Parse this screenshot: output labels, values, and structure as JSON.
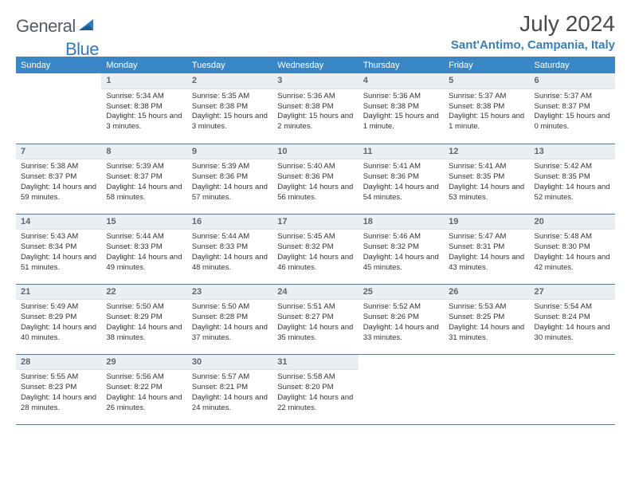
{
  "brand": {
    "word1": "General",
    "word2": "Blue"
  },
  "title": "July 2024",
  "location": "Sant'Antimo, Campania, Italy",
  "colors": {
    "header_bg": "#3a87c7",
    "header_text": "#ffffff",
    "daynum_bg": "#eceff1",
    "rule": "#5b7a95",
    "logo_gray": "#555c63",
    "logo_blue": "#2f7bbf",
    "location_color": "#3a7fb5"
  },
  "weekdays": [
    "Sunday",
    "Monday",
    "Tuesday",
    "Wednesday",
    "Thursday",
    "Friday",
    "Saturday"
  ],
  "weeks": [
    [
      {
        "n": "",
        "lines": []
      },
      {
        "n": "1",
        "lines": [
          "Sunrise: 5:34 AM",
          "Sunset: 8:38 PM",
          "Daylight: 15 hours and 3 minutes."
        ]
      },
      {
        "n": "2",
        "lines": [
          "Sunrise: 5:35 AM",
          "Sunset: 8:38 PM",
          "Daylight: 15 hours and 3 minutes."
        ]
      },
      {
        "n": "3",
        "lines": [
          "Sunrise: 5:36 AM",
          "Sunset: 8:38 PM",
          "Daylight: 15 hours and 2 minutes."
        ]
      },
      {
        "n": "4",
        "lines": [
          "Sunrise: 5:36 AM",
          "Sunset: 8:38 PM",
          "Daylight: 15 hours and 1 minute."
        ]
      },
      {
        "n": "5",
        "lines": [
          "Sunrise: 5:37 AM",
          "Sunset: 8:38 PM",
          "Daylight: 15 hours and 1 minute."
        ]
      },
      {
        "n": "6",
        "lines": [
          "Sunrise: 5:37 AM",
          "Sunset: 8:37 PM",
          "Daylight: 15 hours and 0 minutes."
        ]
      }
    ],
    [
      {
        "n": "7",
        "lines": [
          "Sunrise: 5:38 AM",
          "Sunset: 8:37 PM",
          "Daylight: 14 hours and 59 minutes."
        ]
      },
      {
        "n": "8",
        "lines": [
          "Sunrise: 5:39 AM",
          "Sunset: 8:37 PM",
          "Daylight: 14 hours and 58 minutes."
        ]
      },
      {
        "n": "9",
        "lines": [
          "Sunrise: 5:39 AM",
          "Sunset: 8:36 PM",
          "Daylight: 14 hours and 57 minutes."
        ]
      },
      {
        "n": "10",
        "lines": [
          "Sunrise: 5:40 AM",
          "Sunset: 8:36 PM",
          "Daylight: 14 hours and 56 minutes."
        ]
      },
      {
        "n": "11",
        "lines": [
          "Sunrise: 5:41 AM",
          "Sunset: 8:36 PM",
          "Daylight: 14 hours and 54 minutes."
        ]
      },
      {
        "n": "12",
        "lines": [
          "Sunrise: 5:41 AM",
          "Sunset: 8:35 PM",
          "Daylight: 14 hours and 53 minutes."
        ]
      },
      {
        "n": "13",
        "lines": [
          "Sunrise: 5:42 AM",
          "Sunset: 8:35 PM",
          "Daylight: 14 hours and 52 minutes."
        ]
      }
    ],
    [
      {
        "n": "14",
        "lines": [
          "Sunrise: 5:43 AM",
          "Sunset: 8:34 PM",
          "Daylight: 14 hours and 51 minutes."
        ]
      },
      {
        "n": "15",
        "lines": [
          "Sunrise: 5:44 AM",
          "Sunset: 8:33 PM",
          "Daylight: 14 hours and 49 minutes."
        ]
      },
      {
        "n": "16",
        "lines": [
          "Sunrise: 5:44 AM",
          "Sunset: 8:33 PM",
          "Daylight: 14 hours and 48 minutes."
        ]
      },
      {
        "n": "17",
        "lines": [
          "Sunrise: 5:45 AM",
          "Sunset: 8:32 PM",
          "Daylight: 14 hours and 46 minutes."
        ]
      },
      {
        "n": "18",
        "lines": [
          "Sunrise: 5:46 AM",
          "Sunset: 8:32 PM",
          "Daylight: 14 hours and 45 minutes."
        ]
      },
      {
        "n": "19",
        "lines": [
          "Sunrise: 5:47 AM",
          "Sunset: 8:31 PM",
          "Daylight: 14 hours and 43 minutes."
        ]
      },
      {
        "n": "20",
        "lines": [
          "Sunrise: 5:48 AM",
          "Sunset: 8:30 PM",
          "Daylight: 14 hours and 42 minutes."
        ]
      }
    ],
    [
      {
        "n": "21",
        "lines": [
          "Sunrise: 5:49 AM",
          "Sunset: 8:29 PM",
          "Daylight: 14 hours and 40 minutes."
        ]
      },
      {
        "n": "22",
        "lines": [
          "Sunrise: 5:50 AM",
          "Sunset: 8:29 PM",
          "Daylight: 14 hours and 38 minutes."
        ]
      },
      {
        "n": "23",
        "lines": [
          "Sunrise: 5:50 AM",
          "Sunset: 8:28 PM",
          "Daylight: 14 hours and 37 minutes."
        ]
      },
      {
        "n": "24",
        "lines": [
          "Sunrise: 5:51 AM",
          "Sunset: 8:27 PM",
          "Daylight: 14 hours and 35 minutes."
        ]
      },
      {
        "n": "25",
        "lines": [
          "Sunrise: 5:52 AM",
          "Sunset: 8:26 PM",
          "Daylight: 14 hours and 33 minutes."
        ]
      },
      {
        "n": "26",
        "lines": [
          "Sunrise: 5:53 AM",
          "Sunset: 8:25 PM",
          "Daylight: 14 hours and 31 minutes."
        ]
      },
      {
        "n": "27",
        "lines": [
          "Sunrise: 5:54 AM",
          "Sunset: 8:24 PM",
          "Daylight: 14 hours and 30 minutes."
        ]
      }
    ],
    [
      {
        "n": "28",
        "lines": [
          "Sunrise: 5:55 AM",
          "Sunset: 8:23 PM",
          "Daylight: 14 hours and 28 minutes."
        ]
      },
      {
        "n": "29",
        "lines": [
          "Sunrise: 5:56 AM",
          "Sunset: 8:22 PM",
          "Daylight: 14 hours and 26 minutes."
        ]
      },
      {
        "n": "30",
        "lines": [
          "Sunrise: 5:57 AM",
          "Sunset: 8:21 PM",
          "Daylight: 14 hours and 24 minutes."
        ]
      },
      {
        "n": "31",
        "lines": [
          "Sunrise: 5:58 AM",
          "Sunset: 8:20 PM",
          "Daylight: 14 hours and 22 minutes."
        ]
      },
      {
        "n": "",
        "lines": []
      },
      {
        "n": "",
        "lines": []
      },
      {
        "n": "",
        "lines": []
      }
    ]
  ]
}
